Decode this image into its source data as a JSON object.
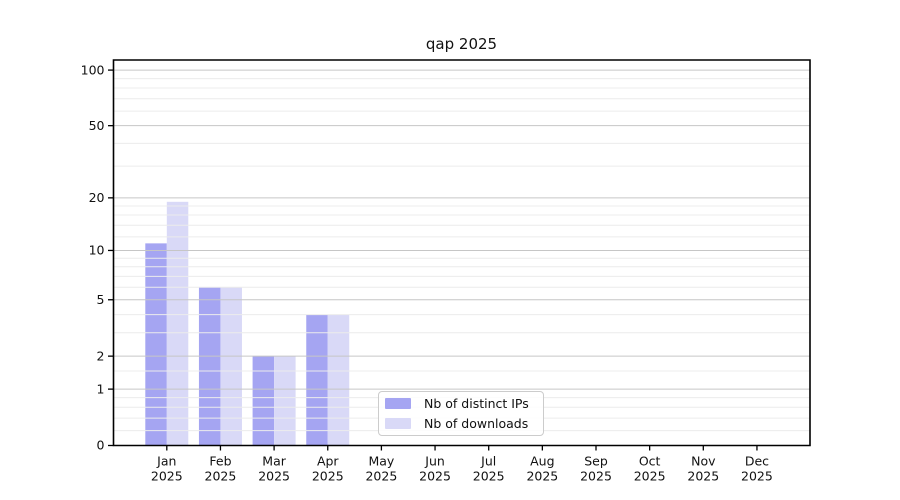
{
  "chart_data": {
    "type": "bar",
    "title": "qap 2025",
    "year": "2025",
    "categories": [
      "Jan",
      "Feb",
      "Mar",
      "Apr",
      "May",
      "Jun",
      "Jul",
      "Aug",
      "Sep",
      "Oct",
      "Nov",
      "Dec"
    ],
    "series": [
      {
        "name": "Nb of distinct IPs",
        "color": "#a5a5f2",
        "values": [
          11,
          6,
          2,
          4,
          0,
          0,
          0,
          0,
          0,
          0,
          0,
          0
        ]
      },
      {
        "name": "Nb of downloads",
        "color": "#d9d9f7",
        "values": [
          19,
          6,
          2,
          4,
          0,
          0,
          0,
          0,
          0,
          0,
          0,
          0
        ]
      }
    ],
    "y_ticks": [
      0,
      1,
      2,
      5,
      10,
      20,
      50,
      100
    ],
    "y_minor_ticks": [
      0.2,
      0.4,
      0.6,
      0.8,
      1.5,
      3,
      4,
      6,
      7,
      8,
      9,
      12,
      14,
      16,
      18,
      30,
      40,
      60,
      70,
      80,
      90
    ],
    "scale": "log1p",
    "ylim": [
      0,
      113
    ],
    "grid": true,
    "legend": {
      "position": "lower center"
    },
    "colors": {
      "major_grid": "#c6c6c6",
      "minor_grid": "#ececec",
      "spine": "#000000",
      "text": "#111111"
    }
  }
}
